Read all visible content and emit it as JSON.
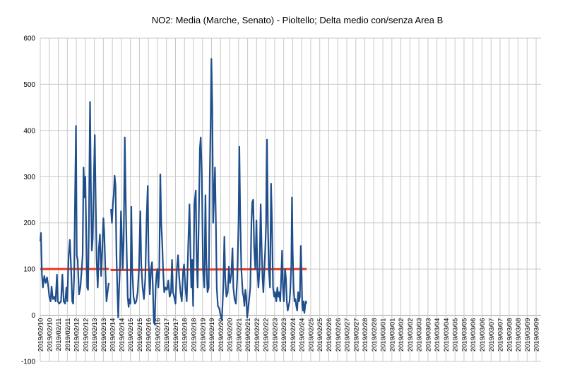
{
  "chart_data": {
    "type": "line",
    "title": "NO2: Media (Marche, Senato) - Pioltello; Delta medio con/senza Area B",
    "xlabel": "",
    "ylabel": "",
    "ylim": [
      -100,
      600
    ],
    "yticks": [
      "-100",
      "0",
      "100",
      "200",
      "300",
      "400",
      "500",
      "600"
    ],
    "grid": true,
    "legend": "none",
    "categories": [
      "2019/02/10",
      "2019/02/10",
      "2019/02/11",
      "2019/02/11",
      "2019/02/12",
      "2019/02/12",
      "2019/02/13",
      "2019/02/13",
      "2019/02/14",
      "2019/02/14",
      "2019/02/15",
      "2019/02/15",
      "2019/02/16",
      "2019/02/16",
      "2019/02/17",
      "2019/02/17",
      "2019/02/18",
      "2019/02/18",
      "2019/02/19",
      "2019/02/19",
      "2019/02/20",
      "2019/02/20",
      "2019/02/21",
      "2019/02/21",
      "2019/02/22",
      "2019/02/22",
      "2019/02/23",
      "2019/02/23",
      "2019/02/24",
      "2019/02/24",
      "2019/02/25",
      "2019/02/25",
      "2019/02/26",
      "2019/02/26",
      "2019/02/27",
      "2019/02/27",
      "2019/02/28",
      "2019/02/28",
      "2019/03/01",
      "2019/03/01",
      "2019/03/02",
      "2019/03/02",
      "2019/03/03",
      "2019/03/03",
      "2019/03/04",
      "2019/03/04",
      "2019/03/05",
      "2019/03/05",
      "2019/03/06",
      "2019/03/06",
      "2019/03/07",
      "2019/03/07",
      "2019/03/08",
      "2019/03/08",
      "2019/03/09",
      "2019/03/09"
    ],
    "series": [
      {
        "role": "values",
        "color": "#1f4e8c",
        "points": [
          [
            0.0,
            160
          ],
          [
            0.08,
            178
          ],
          [
            0.18,
            90
          ],
          [
            0.3,
            60
          ],
          [
            0.45,
            85
          ],
          [
            0.6,
            70
          ],
          [
            0.75,
            82
          ],
          [
            0.9,
            60
          ],
          [
            1.0,
            40
          ],
          [
            1.15,
            30
          ],
          [
            1.25,
            62
          ],
          [
            1.4,
            35
          ],
          [
            1.55,
            40
          ],
          [
            1.7,
            30
          ],
          [
            1.85,
            88
          ],
          [
            1.95,
            30
          ],
          [
            2.1,
            25
          ],
          [
            2.3,
            30
          ],
          [
            2.45,
            88
          ],
          [
            2.6,
            30
          ],
          [
            2.75,
            25
          ],
          [
            2.9,
            60
          ],
          [
            3.0,
            30
          ],
          [
            3.15,
            130
          ],
          [
            3.28,
            163
          ],
          [
            3.42,
            100
          ],
          [
            3.55,
            30
          ],
          [
            3.65,
            25
          ],
          [
            3.75,
            80
          ],
          [
            3.88,
            280
          ],
          [
            3.96,
            410
          ],
          [
            4.05,
            130
          ],
          [
            4.15,
            120
          ],
          [
            4.3,
            45
          ],
          [
            4.45,
            60
          ],
          [
            4.58,
            95
          ],
          [
            4.7,
            130
          ],
          [
            4.8,
            320
          ],
          [
            4.9,
            255
          ],
          [
            5.0,
            300
          ],
          [
            5.1,
            180
          ],
          [
            5.2,
            60
          ],
          [
            5.3,
            55
          ],
          [
            5.4,
            200
          ],
          [
            5.52,
            462
          ],
          [
            5.62,
            280
          ],
          [
            5.72,
            140
          ],
          [
            5.82,
            165
          ],
          [
            5.95,
            305
          ],
          [
            6.05,
            390
          ],
          [
            6.15,
            250
          ],
          [
            6.25,
            120
          ],
          [
            6.38,
            60
          ],
          [
            6.5,
            145
          ],
          [
            6.62,
            175
          ],
          [
            6.75,
            85
          ],
          [
            6.88,
            140
          ],
          [
            7.0,
            210
          ],
          [
            7.1,
            180
          ],
          [
            7.22,
            100
          ],
          [
            7.35,
            30
          ],
          [
            7.5,
            55
          ],
          [
            7.6,
            70
          ],
          [
            7.7,
            null
          ],
          [
            7.85,
            230
          ],
          [
            7.95,
            200
          ],
          [
            8.05,
            240
          ],
          [
            8.15,
            260
          ],
          [
            8.25,
            302
          ],
          [
            8.35,
            280
          ],
          [
            8.45,
            130
          ],
          [
            8.55,
            60
          ],
          [
            8.65,
            -5
          ],
          [
            8.75,
            60
          ],
          [
            8.85,
            110
          ],
          [
            8.95,
            225
          ],
          [
            9.05,
            170
          ],
          [
            9.15,
            100
          ],
          [
            9.25,
            160
          ],
          [
            9.38,
            385
          ],
          [
            9.48,
            250
          ],
          [
            9.6,
            130
          ],
          [
            9.7,
            40
          ],
          [
            9.8,
            18
          ],
          [
            9.9,
            35
          ],
          [
            10.0,
            25
          ],
          [
            10.1,
            235
          ],
          [
            10.2,
            100
          ],
          [
            10.35,
            40
          ],
          [
            10.5,
            25
          ],
          [
            10.65,
            30
          ],
          [
            10.8,
            50
          ],
          [
            10.95,
            100
          ],
          [
            11.1,
            225
          ],
          [
            11.2,
            110
          ],
          [
            11.35,
            60
          ],
          [
            11.5,
            35
          ],
          [
            11.65,
            80
          ],
          [
            11.8,
            210
          ],
          [
            11.92,
            280
          ],
          [
            12.02,
            120
          ],
          [
            12.15,
            45
          ],
          [
            12.28,
            100
          ],
          [
            12.4,
            115
          ],
          [
            12.5,
            50
          ],
          [
            12.6,
            -15
          ],
          [
            12.7,
            -20
          ],
          [
            12.8,
            60
          ],
          [
            12.9,
            90
          ],
          [
            13.0,
            100
          ],
          [
            13.1,
            60
          ],
          [
            13.2,
            95
          ],
          [
            13.32,
            305
          ],
          [
            13.42,
            200
          ],
          [
            13.52,
            160
          ],
          [
            13.62,
            100
          ],
          [
            13.75,
            50
          ],
          [
            13.9,
            60
          ],
          [
            14.05,
            55
          ],
          [
            14.2,
            75
          ],
          [
            14.35,
            40
          ],
          [
            14.5,
            50
          ],
          [
            14.62,
            120
          ],
          [
            14.72,
            50
          ],
          [
            14.85,
            40
          ],
          [
            15.0,
            25
          ],
          [
            15.15,
            100
          ],
          [
            15.28,
            130
          ],
          [
            15.4,
            85
          ],
          [
            15.55,
            50
          ],
          [
            15.7,
            30
          ],
          [
            15.85,
            95
          ],
          [
            15.95,
            110
          ],
          [
            16.1,
            60
          ],
          [
            16.25,
            30
          ],
          [
            16.4,
            145
          ],
          [
            16.55,
            240
          ],
          [
            16.65,
            150
          ],
          [
            16.75,
            60
          ],
          [
            16.85,
            120
          ],
          [
            16.95,
            20
          ],
          [
            17.1,
            240
          ],
          [
            17.25,
            270
          ],
          [
            17.35,
            120
          ],
          [
            17.45,
            60
          ],
          [
            17.58,
            200
          ],
          [
            17.7,
            360
          ],
          [
            17.8,
            385
          ],
          [
            17.92,
            300
          ],
          [
            18.05,
            100
          ],
          [
            18.2,
            60
          ],
          [
            18.32,
            260
          ],
          [
            18.42,
            120
          ],
          [
            18.55,
            50
          ],
          [
            18.68,
            60
          ],
          [
            18.8,
            300
          ],
          [
            18.9,
            420
          ],
          [
            18.98,
            555
          ],
          [
            19.08,
            450
          ],
          [
            19.18,
            200
          ],
          [
            19.28,
            260
          ],
          [
            19.38,
            320
          ],
          [
            19.48,
            200
          ],
          [
            19.58,
            60
          ],
          [
            19.7,
            20
          ],
          [
            19.85,
            15
          ],
          [
            20.0,
            0
          ],
          [
            20.15,
            -10
          ],
          [
            20.3,
            60
          ],
          [
            20.42,
            170
          ],
          [
            20.52,
            80
          ],
          [
            20.65,
            40
          ],
          [
            20.8,
            50
          ],
          [
            20.92,
            105
          ],
          [
            21.05,
            70
          ],
          [
            21.2,
            90
          ],
          [
            21.32,
            145
          ],
          [
            21.42,
            60
          ],
          [
            21.55,
            35
          ],
          [
            21.7,
            25
          ],
          [
            21.85,
            80
          ],
          [
            22.0,
            205
          ],
          [
            22.08,
            365
          ],
          [
            22.18,
            220
          ],
          [
            22.3,
            100
          ],
          [
            22.45,
            50
          ],
          [
            22.55,
            40
          ],
          [
            22.65,
            20
          ],
          [
            22.75,
            55
          ],
          [
            22.85,
            40
          ],
          [
            22.95,
            -5
          ],
          [
            23.05,
            10
          ],
          [
            23.15,
            30
          ],
          [
            23.3,
            60
          ],
          [
            23.42,
            200
          ],
          [
            23.52,
            245
          ],
          [
            23.62,
            250
          ],
          [
            23.72,
            150
          ],
          [
            23.85,
            100
          ],
          [
            23.98,
            205
          ],
          [
            24.08,
            100
          ],
          [
            24.2,
            60
          ],
          [
            24.32,
            100
          ],
          [
            24.45,
            240
          ],
          [
            24.55,
            150
          ],
          [
            24.65,
            80
          ],
          [
            24.75,
            50
          ],
          [
            24.85,
            100
          ],
          [
            24.95,
            140
          ],
          [
            25.05,
            200
          ],
          [
            25.15,
            380
          ],
          [
            25.25,
            200
          ],
          [
            25.35,
            100
          ],
          [
            25.48,
            60
          ],
          [
            25.6,
            285
          ],
          [
            25.7,
            200
          ],
          [
            25.82,
            60
          ],
          [
            25.95,
            40
          ],
          [
            26.05,
            50
          ],
          [
            26.18,
            30
          ],
          [
            26.3,
            60
          ],
          [
            26.4,
            40
          ],
          [
            26.5,
            50
          ],
          [
            26.62,
            30
          ],
          [
            26.72,
            80
          ],
          [
            26.82,
            140
          ],
          [
            26.92,
            60
          ],
          [
            27.02,
            30
          ],
          [
            27.15,
            100
          ],
          [
            27.25,
            80
          ],
          [
            27.35,
            30
          ],
          [
            27.45,
            10
          ],
          [
            27.55,
            20
          ],
          [
            27.65,
            30
          ],
          [
            27.75,
            60
          ],
          [
            27.85,
            110
          ],
          [
            27.92,
            255
          ],
          [
            28.0,
            140
          ],
          [
            28.1,
            60
          ],
          [
            28.2,
            30
          ],
          [
            28.3,
            35
          ],
          [
            28.4,
            20
          ],
          [
            28.5,
            10
          ],
          [
            28.6,
            50
          ],
          [
            28.7,
            30
          ],
          [
            28.8,
            40
          ],
          [
            28.9,
            150
          ],
          [
            28.98,
            100
          ],
          [
            29.06,
            20
          ],
          [
            29.14,
            10
          ],
          [
            29.22,
            30
          ],
          [
            29.3,
            5
          ],
          [
            29.38,
            20
          ],
          [
            29.46,
            30
          ],
          [
            29.54,
            25
          ]
        ]
      },
      {
        "role": "delta medio",
        "color": "#e8391c",
        "points": [
          [
            0.0,
            100
          ],
          [
            7.6,
            100
          ],
          [
            7.75,
            null
          ],
          [
            7.8,
            98
          ],
          [
            29.54,
            100
          ]
        ]
      }
    ]
  }
}
